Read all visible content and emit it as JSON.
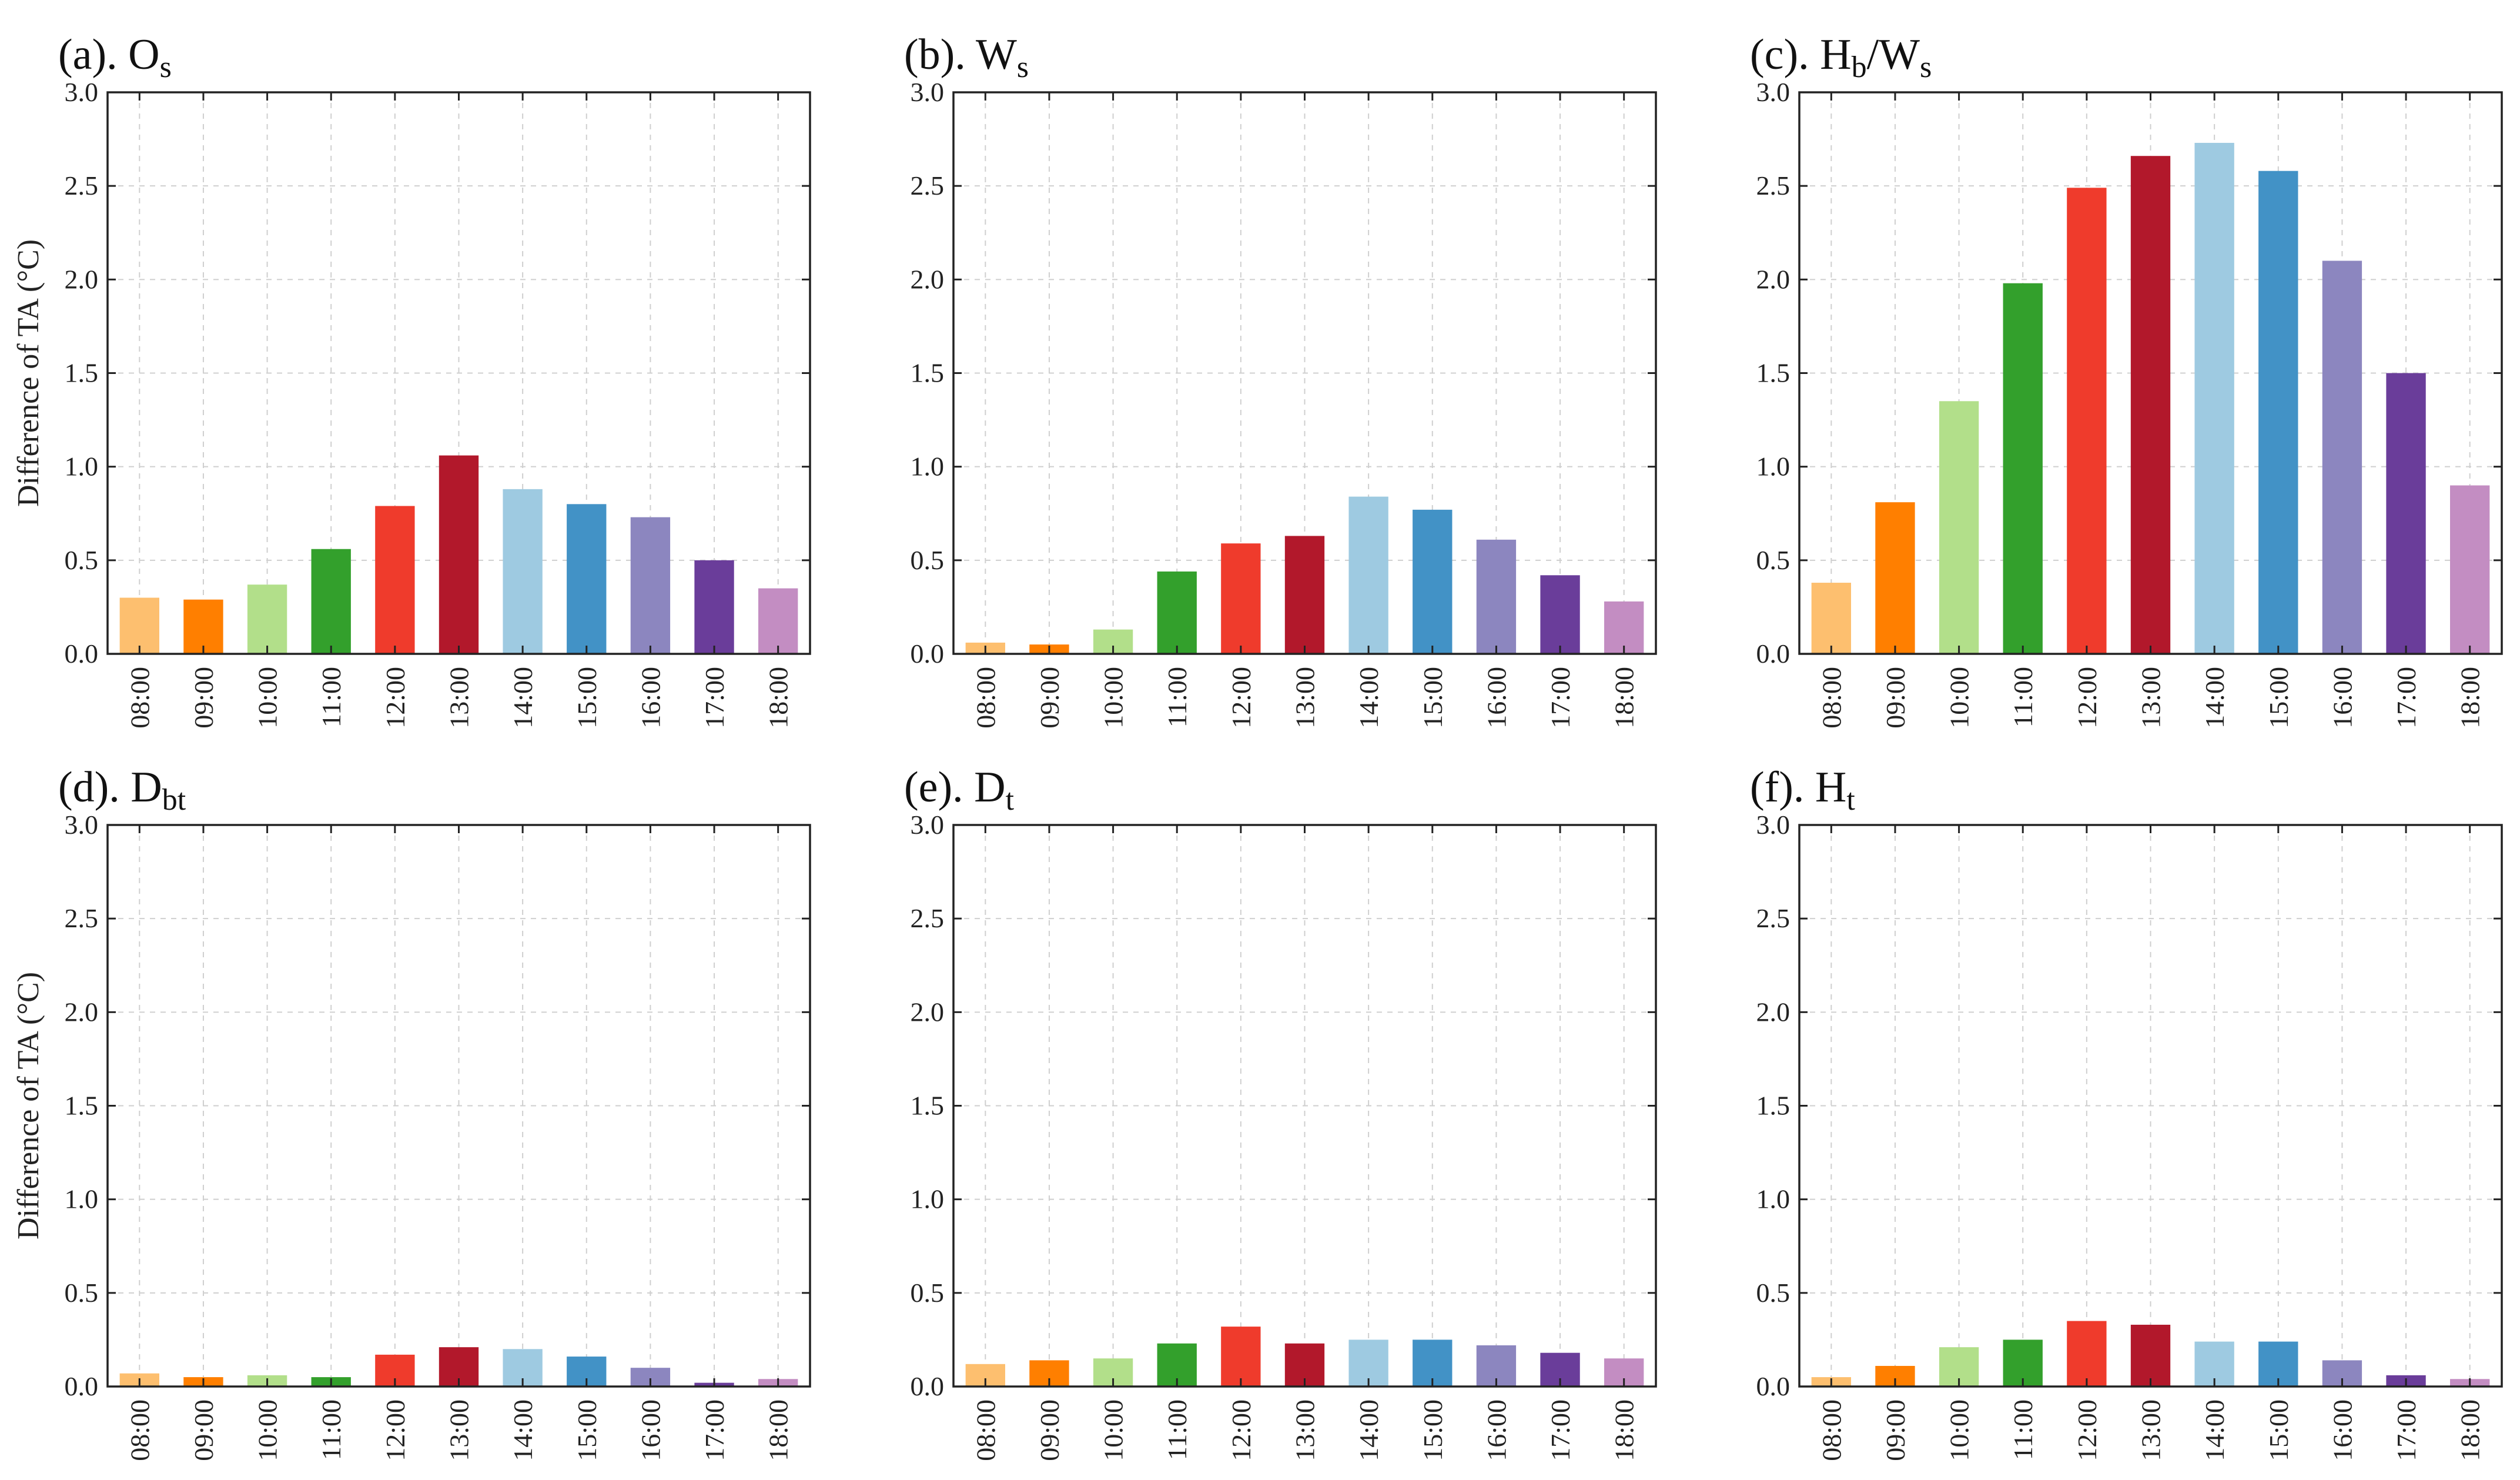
{
  "figure": {
    "ylabel": "Difference of TA (°C)",
    "ylim": [
      0,
      3.0
    ],
    "yticks": [
      "0.0",
      "0.5",
      "1.0",
      "1.5",
      "2.0",
      "2.5",
      "3.0"
    ],
    "categories": [
      "08:00",
      "09:00",
      "10:00",
      "11:00",
      "12:00",
      "13:00",
      "14:00",
      "15:00",
      "16:00",
      "17:00",
      "18:00"
    ],
    "colors": [
      "#fdbf6f",
      "#ff7f00",
      "#b2df8a",
      "#33a02c",
      "#ef3b2c",
      "#b2182b",
      "#9ecae1",
      "#4292c6",
      "#8c86bf",
      "#6a3d9a",
      "#c38dc2"
    ],
    "grid": "dashed, both axes"
  },
  "chart_data": [
    {
      "type": "bar",
      "title_main": "(a). O",
      "title_sub": "s",
      "categories": [
        "08:00",
        "09:00",
        "10:00",
        "11:00",
        "12:00",
        "13:00",
        "14:00",
        "15:00",
        "16:00",
        "17:00",
        "18:00"
      ],
      "values": [
        0.3,
        0.29,
        0.37,
        0.56,
        0.79,
        1.06,
        0.88,
        0.8,
        0.73,
        0.5,
        0.35
      ],
      "ylabel": "Difference of TA (°C)",
      "ylim": [
        0,
        3.0
      ]
    },
    {
      "type": "bar",
      "title_main": "(b). W",
      "title_sub": "s",
      "categories": [
        "08:00",
        "09:00",
        "10:00",
        "11:00",
        "12:00",
        "13:00",
        "14:00",
        "15:00",
        "16:00",
        "17:00",
        "18:00"
      ],
      "values": [
        0.06,
        0.05,
        0.13,
        0.44,
        0.59,
        0.63,
        0.84,
        0.77,
        0.61,
        0.42,
        0.28
      ],
      "ylabel": "",
      "ylim": [
        0,
        3.0
      ]
    },
    {
      "type": "bar",
      "title_main": "(c). H",
      "title_sub": "b",
      "title_main2": "/W",
      "title_sub2": "s",
      "categories": [
        "08:00",
        "09:00",
        "10:00",
        "11:00",
        "12:00",
        "13:00",
        "14:00",
        "15:00",
        "16:00",
        "17:00",
        "18:00"
      ],
      "values": [
        0.38,
        0.81,
        1.35,
        1.98,
        2.49,
        2.66,
        2.73,
        2.58,
        2.1,
        1.5,
        0.9
      ],
      "ylabel": "",
      "ylim": [
        0,
        3.0
      ]
    },
    {
      "type": "bar",
      "title_main": "(d). D",
      "title_sub": "bt",
      "categories": [
        "08:00",
        "09:00",
        "10:00",
        "11:00",
        "12:00",
        "13:00",
        "14:00",
        "15:00",
        "16:00",
        "17:00",
        "18:00"
      ],
      "values": [
        0.07,
        0.05,
        0.06,
        0.05,
        0.17,
        0.21,
        0.2,
        0.16,
        0.1,
        0.02,
        0.04
      ],
      "ylabel": "Difference of TA (°C)",
      "ylim": [
        0,
        3.0
      ]
    },
    {
      "type": "bar",
      "title_main": "(e). D",
      "title_sub": "t",
      "categories": [
        "08:00",
        "09:00",
        "10:00",
        "11:00",
        "12:00",
        "13:00",
        "14:00",
        "15:00",
        "16:00",
        "17:00",
        "18:00"
      ],
      "values": [
        0.12,
        0.14,
        0.15,
        0.23,
        0.32,
        0.23,
        0.25,
        0.25,
        0.22,
        0.18,
        0.15
      ],
      "ylabel": "",
      "ylim": [
        0,
        3.0
      ]
    },
    {
      "type": "bar",
      "title_main": "(f). H",
      "title_sub": "t",
      "categories": [
        "08:00",
        "09:00",
        "10:00",
        "11:00",
        "12:00",
        "13:00",
        "14:00",
        "15:00",
        "16:00",
        "17:00",
        "18:00"
      ],
      "values": [
        0.05,
        0.11,
        0.21,
        0.25,
        0.35,
        0.33,
        0.24,
        0.24,
        0.14,
        0.06,
        0.04
      ],
      "ylabel": "",
      "ylim": [
        0,
        3.0
      ]
    }
  ]
}
